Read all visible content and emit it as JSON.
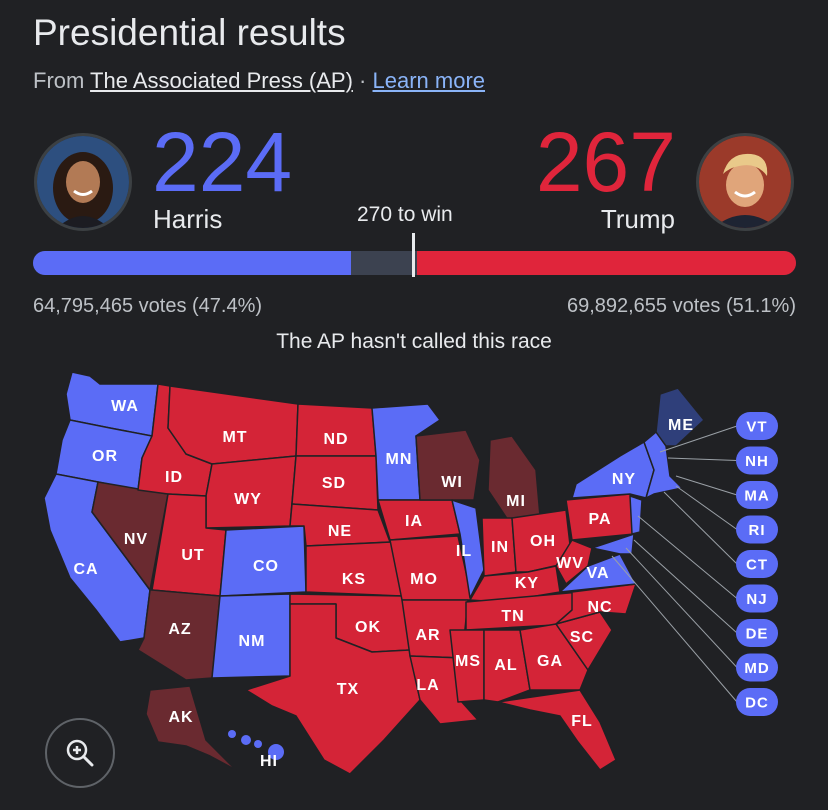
{
  "header": {
    "title": "Presidential results",
    "source_prefix": "From ",
    "source_name": "The Associated Press (AP)",
    "separator": " · ",
    "learn_more": "Learn more"
  },
  "candidates": {
    "harris": {
      "name": "Harris",
      "electoral_votes": "224",
      "popular_votes": "64,795,465 votes (47.4%)",
      "color": "#5b6cf6"
    },
    "trump": {
      "name": "Trump",
      "electoral_votes": "267",
      "popular_votes": "69,892,655 votes (51.1%)",
      "color": "#e0253b"
    }
  },
  "progress": {
    "threshold_label": "270 to win",
    "total": 538,
    "harris": 224,
    "trump": 267,
    "threshold": 270
  },
  "status_text": "The AP hasn't called this race",
  "map": {
    "colors": {
      "dem": "#5b6cf6",
      "dem_lean": "#2f3f7a",
      "rep": "#d42437",
      "rep_lean": "#6a2a30"
    },
    "state_labels": [
      "WA",
      "OR",
      "CA",
      "NV",
      "ID",
      "MT",
      "WY",
      "UT",
      "AZ",
      "CO",
      "NM",
      "ND",
      "SD",
      "NE",
      "KS",
      "OK",
      "TX",
      "MN",
      "IA",
      "MO",
      "AR",
      "LA",
      "WI",
      "IL",
      "MI",
      "IN",
      "OH",
      "KY",
      "TN",
      "MS",
      "AL",
      "GA",
      "FL",
      "SC",
      "NC",
      "VA",
      "WV",
      "PA",
      "NY",
      "ME",
      "AK",
      "HI"
    ],
    "small_states": [
      "VT",
      "NH",
      "MA",
      "RI",
      "CT",
      "NJ",
      "DE",
      "MD",
      "DC"
    ]
  },
  "controls": {
    "zoom_icon": "zoom-in-icon"
  }
}
